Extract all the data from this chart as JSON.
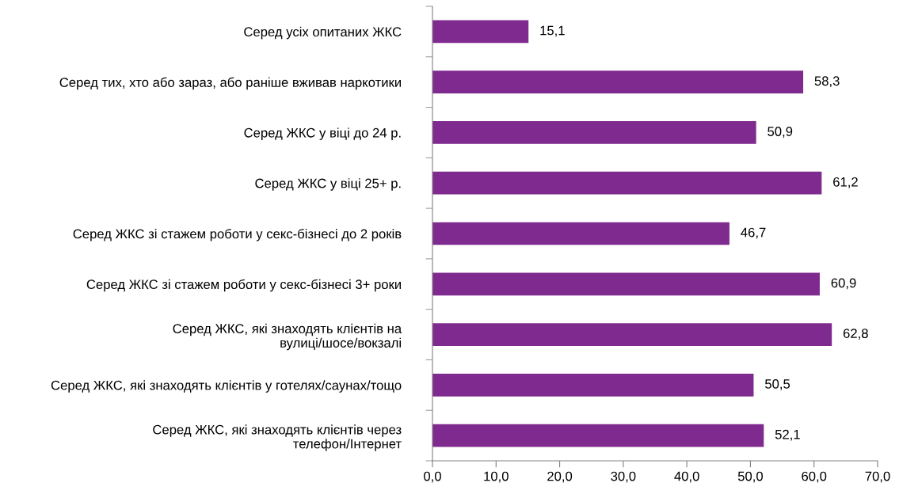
{
  "chart_data": {
    "type": "bar",
    "orientation": "horizontal",
    "categories": [
      "Серед усіх опитаних ЖКС",
      "Серед тих, хто або зараз, або раніше вживав наркотики",
      "Серед ЖКС у віці до 24 р.",
      "Серед ЖКС у віці 25+ р.",
      "Серед ЖКС зі стажем роботи у секс-бізнесі до 2 років",
      "Серед ЖКС зі стажем роботи у секс-бізнесі 3+ роки",
      "Серед ЖКС, які знаходять клієнтів на\nвулиці/шосе/вокзалі",
      "Серед ЖКС, які знаходять клієнтів у готелях/саунах/тощо",
      "Серед ЖКС, які знаходять клієнтів через\nтелефон/Інтернет"
    ],
    "values": [
      15.1,
      58.3,
      50.9,
      61.2,
      46.7,
      60.9,
      62.8,
      50.5,
      52.1
    ],
    "value_labels": [
      "15,1",
      "58,3",
      "50,9",
      "61,2",
      "46,7",
      "60,9",
      "62,8",
      "50,5",
      "52,1"
    ],
    "color": "#7f2a8e",
    "xlim": [
      0,
      70
    ],
    "xticks": [
      {
        "value": 0,
        "label": "0,0"
      },
      {
        "value": 10,
        "label": "10,0"
      },
      {
        "value": 20,
        "label": "20,0"
      },
      {
        "value": 30,
        "label": "30,0"
      },
      {
        "value": 40,
        "label": "40,0"
      },
      {
        "value": 50,
        "label": "50,0"
      },
      {
        "value": 60,
        "label": "60,0"
      },
      {
        "value": 70,
        "label": "70,0"
      }
    ],
    "grid": false,
    "legend": false
  }
}
